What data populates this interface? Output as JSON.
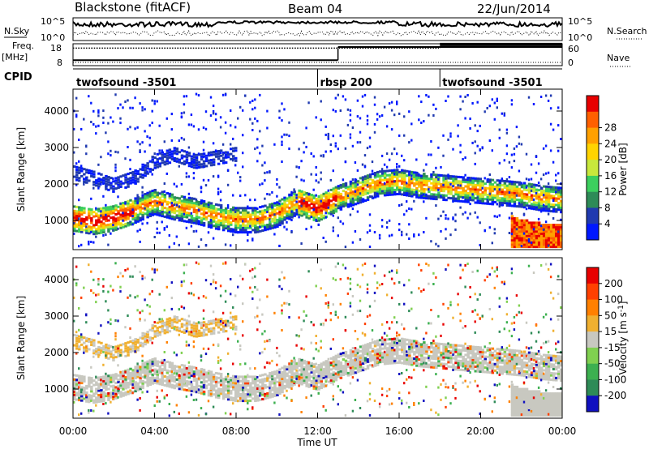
{
  "header": {
    "station": "Blackstone (fitACF)",
    "beam": "Beam 04",
    "date": "22/Jun/2014"
  },
  "sidepanel": {
    "nsky_label": "N.Sky",
    "freq_label_line1": "Freq.",
    "freq_label_line2": "[MHz]",
    "cpid_label": "CPID",
    "nsearch_label": "N.Search",
    "nave_label": "Nave",
    "nsky_ticks": [
      "10^5",
      "10^0"
    ],
    "nsearch_ticks": [
      "10^5",
      "10^0"
    ],
    "freq_ticks": [
      "18",
      "8"
    ],
    "nave_ticks": [
      "60",
      "0"
    ]
  },
  "cpid": {
    "segments": [
      {
        "label": "twofsound -3501",
        "start_hour": 0,
        "end_hour": 12.0
      },
      {
        "label": "rbsp 200",
        "start_hour": 12.0,
        "end_hour": 18.0
      },
      {
        "label": "twofsound -3501",
        "start_hour": 18.0,
        "end_hour": 24.0
      }
    ]
  },
  "freq_nave": {
    "freq_steps": [
      {
        "start_hour": 0,
        "end_hour": 13.0,
        "value": 10.5
      },
      {
        "start_hour": 13.0,
        "end_hour": 24.0,
        "value": 16.5
      }
    ],
    "nave_steps": [
      {
        "start_hour": 0,
        "end_hour": 18.0,
        "value": 48
      },
      {
        "start_hour": 18.0,
        "end_hour": 24.0,
        "value": 58
      }
    ]
  },
  "chart_data": [
    {
      "type": "heatmap",
      "panel": "power",
      "xlabel": "",
      "ylabel": "Slant Range [km]",
      "xlim": [
        0,
        24
      ],
      "ylim": [
        200,
        4600
      ],
      "yticks": [
        "1000",
        "2000",
        "3000",
        "4000"
      ],
      "colorbar_label": "Power [dB]",
      "colorbar_ticks": [
        "4",
        "8",
        "12",
        "16",
        "20",
        "24",
        "28"
      ],
      "colorbar_colors": [
        "#0018ff",
        "#203ab0",
        "#2e8b57",
        "#3ccf5e",
        "#c8e83c",
        "#ffd400",
        "#ffa000",
        "#ff6000",
        "#e80000"
      ],
      "features": [
        {
          "name": "main band",
          "hours": [
            0,
            1,
            2,
            3,
            4,
            5,
            6,
            7,
            8,
            9,
            10,
            11,
            12,
            13,
            14,
            15,
            16,
            17,
            18,
            19,
            20,
            21,
            22,
            23,
            24
          ],
          "range_km": [
            1050,
            950,
            1050,
            1250,
            1500,
            1350,
            1250,
            1100,
            1000,
            1000,
            1150,
            1500,
            1300,
            1600,
            1800,
            2000,
            2050,
            1950,
            1900,
            1850,
            1800,
            1750,
            1700,
            1600,
            1550
          ]
        },
        {
          "name": "upper band",
          "hours": [
            0,
            1,
            2,
            3,
            4,
            5,
            6,
            7,
            8
          ],
          "range_km": [
            2300,
            2150,
            1950,
            2150,
            2600,
            2800,
            2600,
            2700,
            2800
          ]
        },
        {
          "name": "late low band",
          "hours": [
            21.5,
            22,
            22.5,
            23,
            23.5,
            24
          ],
          "range_km": [
            650,
            550,
            500,
            450,
            450,
            450
          ]
        }
      ]
    },
    {
      "type": "heatmap",
      "panel": "velocity",
      "xlabel": "Time UT",
      "ylabel": "Slant Range [km]",
      "xlim": [
        0,
        24
      ],
      "ylim": [
        200,
        4600
      ],
      "xticks": [
        "00:00",
        "04:00",
        "08:00",
        "12:00",
        "16:00",
        "20:00",
        "00:00"
      ],
      "yticks": [
        "1000",
        "2000",
        "3000",
        "4000"
      ],
      "colorbar_label": "Velocity [m s^-1]",
      "colorbar_ticks": [
        "200",
        "100",
        "50",
        "15",
        "-15",
        "-50",
        "-100",
        "-200"
      ],
      "colorbar_colors": [
        "#1010c0",
        "#2e8b57",
        "#3cb050",
        "#80d050",
        "#c8c8c0",
        "#f0b030",
        "#ff8000",
        "#ff4000",
        "#e80000"
      ],
      "features": [
        {
          "name": "main band",
          "hours": [
            0,
            1,
            2,
            3,
            4,
            5,
            6,
            7,
            8,
            9,
            10,
            11,
            12,
            13,
            14,
            15,
            16,
            17,
            18,
            19,
            20,
            21,
            22,
            23,
            24
          ],
          "range_km": [
            1050,
            950,
            1050,
            1250,
            1500,
            1350,
            1250,
            1100,
            1000,
            1000,
            1150,
            1500,
            1300,
            1600,
            1800,
            2000,
            2050,
            1950,
            1900,
            1850,
            1800,
            1750,
            1700,
            1600,
            1550
          ]
        }
      ]
    }
  ]
}
